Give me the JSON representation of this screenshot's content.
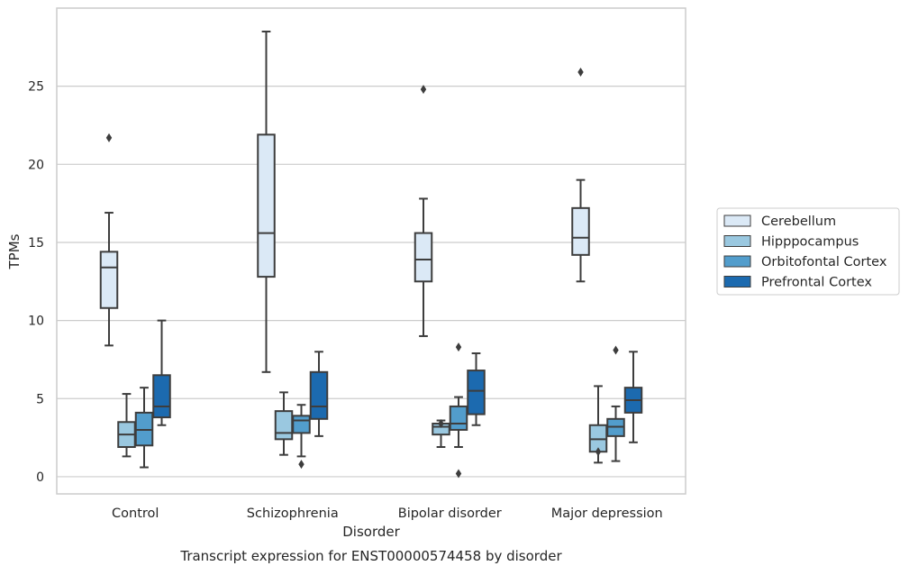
{
  "chart_data": {
    "type": "box",
    "title": "Transcript expression for ENST00000574458 by disorder",
    "xlabel": "Disorder",
    "ylabel": "TPMs",
    "ylim": [
      -1.1,
      30
    ],
    "yticks": [
      0,
      5,
      10,
      15,
      20,
      25
    ],
    "ytick_labels": [
      "0",
      "5",
      "10",
      "15",
      "20",
      "25"
    ],
    "grid": "horizontal",
    "legend_position": "right",
    "categories": [
      "Control",
      "Schizophrenia",
      "Bipolar disorder",
      "Major depression"
    ],
    "series": [
      {
        "name": "Cerebellum",
        "color": "#dbe9f6",
        "boxes": [
          {
            "min": 8.4,
            "q1": 10.8,
            "median": 13.4,
            "q3": 14.4,
            "max": 16.9,
            "outliers": [
              21.7
            ]
          },
          {
            "min": 6.7,
            "q1": 12.8,
            "median": 15.6,
            "q3": 21.9,
            "max": 28.5,
            "outliers": []
          },
          {
            "min": 9.0,
            "q1": 12.5,
            "median": 13.9,
            "q3": 15.6,
            "max": 17.8,
            "outliers": [
              24.8
            ]
          },
          {
            "min": 12.5,
            "q1": 14.2,
            "median": 15.3,
            "q3": 17.2,
            "max": 19.0,
            "outliers": [
              25.9
            ]
          }
        ]
      },
      {
        "name": "Hipppocampus",
        "color": "#9ac8e0",
        "boxes": [
          {
            "min": 1.3,
            "q1": 1.9,
            "median": 2.7,
            "q3": 3.5,
            "max": 5.3,
            "outliers": []
          },
          {
            "min": 1.4,
            "q1": 2.4,
            "median": 2.8,
            "q3": 4.2,
            "max": 5.4,
            "outliers": []
          },
          {
            "min": 1.9,
            "q1": 2.7,
            "median": 3.2,
            "q3": 3.4,
            "max": 3.6,
            "outliers": [
              3.4
            ]
          },
          {
            "min": 0.9,
            "q1": 1.6,
            "median": 2.4,
            "q3": 3.3,
            "max": 5.8,
            "outliers": [
              1.6
            ]
          }
        ]
      },
      {
        "name": "Orbitofontal Cortex",
        "color": "#529dcc",
        "boxes": [
          {
            "min": 0.6,
            "q1": 2.0,
            "median": 3.0,
            "q3": 4.1,
            "max": 5.7,
            "outliers": []
          },
          {
            "min": 1.3,
            "q1": 2.8,
            "median": 3.6,
            "q3": 3.9,
            "max": 4.6,
            "outliers": [
              0.8
            ]
          },
          {
            "min": 1.9,
            "q1": 3.0,
            "median": 3.4,
            "q3": 4.5,
            "max": 5.1,
            "outliers": [
              0.2,
              8.3
            ]
          },
          {
            "min": 1.0,
            "q1": 2.6,
            "median": 3.2,
            "q3": 3.7,
            "max": 4.5,
            "outliers": [
              8.1
            ]
          }
        ]
      },
      {
        "name": "Prefrontal Cortex",
        "color": "#1c6aaf",
        "boxes": [
          {
            "min": 3.3,
            "q1": 3.8,
            "median": 4.5,
            "q3": 6.5,
            "max": 10.0,
            "outliers": []
          },
          {
            "min": 2.6,
            "q1": 3.7,
            "median": 4.5,
            "q3": 6.7,
            "max": 8.0,
            "outliers": []
          },
          {
            "min": 3.3,
            "q1": 4.0,
            "median": 5.5,
            "q3": 6.8,
            "max": 7.9,
            "outliers": []
          },
          {
            "min": 2.2,
            "q1": 4.1,
            "median": 4.9,
            "q3": 5.7,
            "max": 8.0,
            "outliers": []
          }
        ]
      }
    ]
  }
}
